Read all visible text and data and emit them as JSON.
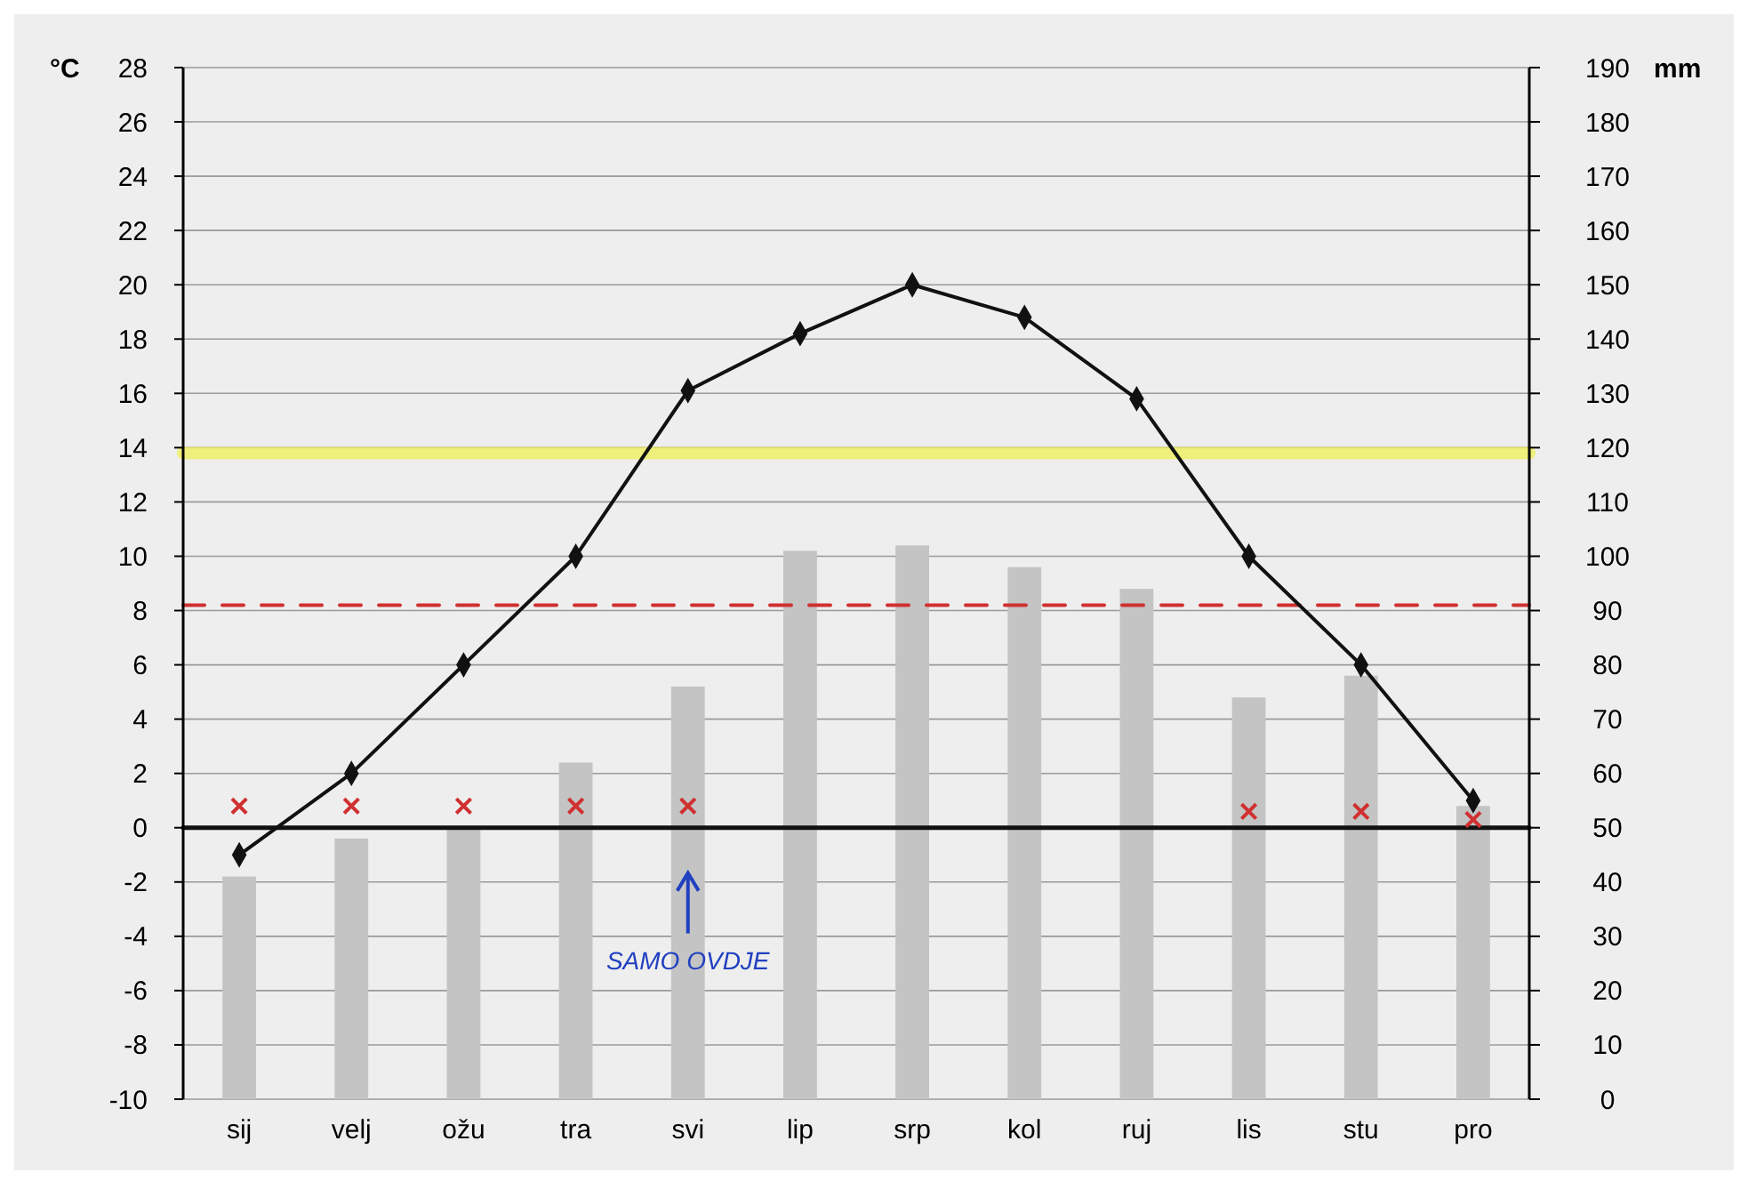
{
  "chart_data": {
    "type": "bar",
    "categories": [
      "sij",
      "velj",
      "ožu",
      "tra",
      "svi",
      "lip",
      "srp",
      "kol",
      "ruj",
      "lis",
      "stu",
      "pro"
    ],
    "ylabel": "°C",
    "y2label": "mm",
    "ylim": [
      -10,
      28
    ],
    "yticks": [
      -10,
      -8,
      -6,
      -4,
      -2,
      0,
      2,
      4,
      6,
      8,
      10,
      12,
      14,
      16,
      18,
      20,
      22,
      24,
      26,
      28
    ],
    "y2lim": [
      0,
      190
    ],
    "y2ticks": [
      0,
      10,
      20,
      30,
      40,
      50,
      60,
      70,
      80,
      90,
      100,
      110,
      120,
      130,
      140,
      150,
      160,
      170,
      180,
      190
    ],
    "grid": "y",
    "series": [
      {
        "axis": "y2",
        "color": "#c4c4c4",
        "values": [
          41,
          48,
          50,
          62,
          76,
          101,
          102,
          98,
          94,
          74,
          78,
          54
        ]
      },
      {
        "type": "line",
        "axis": "y",
        "color": "#111111",
        "marker": "diamond",
        "line_style": "solid",
        "values": [
          -1.0,
          2.0,
          6.0,
          10.0,
          16.1,
          18.2,
          20.0,
          18.8,
          15.8,
          10.0,
          6.0,
          1.0
        ]
      },
      {
        "type": "scatter",
        "axis": "y",
        "color": "#d03030",
        "marker": "cross",
        "values": [
          0.8,
          0.8,
          0.8,
          0.8,
          0.8,
          null,
          null,
          null,
          null,
          0.6,
          0.6,
          0.3
        ]
      }
    ],
    "ref_lines": [
      {
        "axis": "y",
        "value": 0,
        "color": "#111111",
        "line_style": "solid"
      },
      {
        "axis": "y",
        "value": 13.8,
        "color": "#f0f060",
        "line_style": "solid"
      },
      {
        "axis": "y",
        "value": 8.2,
        "color": "#d03030",
        "line_style": "dashed"
      }
    ],
    "annotations": [
      "SAMO OVDJE"
    ]
  }
}
